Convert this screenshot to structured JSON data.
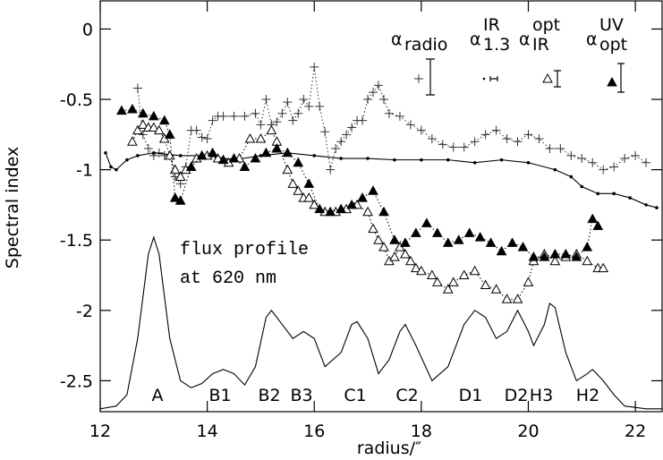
{
  "chart_data": {
    "type": "line",
    "xlabel": "radius/″",
    "ylabel": "Spectral index",
    "xlim": [
      12,
      22.5
    ],
    "ylim": [
      -2.72,
      0.2
    ],
    "xticks": [
      12,
      14,
      16,
      18,
      20,
      22
    ],
    "yticks": [
      0,
      -0.5,
      -1,
      -1.5,
      -2,
      -2.5
    ],
    "annotations": [
      "flux profile",
      "at 620 nm"
    ],
    "peak_labels": [
      "A",
      "B1",
      "B2",
      "B3",
      "C1",
      "C2",
      "D1",
      "D2",
      "H3",
      "H2"
    ],
    "series": [
      {
        "name": "α",
        "subscript": "radio",
        "marker": "plus",
        "line": "dotted",
        "color": "#333333",
        "x": [
          12.7,
          12.8,
          12.9,
          13.0,
          13.1,
          13.2,
          13.3,
          13.4,
          13.5,
          13.6,
          13.7,
          13.8,
          13.9,
          14.0,
          14.1,
          14.2,
          14.3,
          14.5,
          14.7,
          14.9,
          15.0,
          15.1,
          15.2,
          15.3,
          15.4,
          15.5,
          15.6,
          15.7,
          15.8,
          15.9,
          16.0,
          16.1,
          16.2,
          16.3,
          16.4,
          16.5,
          16.6,
          16.7,
          16.8,
          16.9,
          17.0,
          17.1,
          17.2,
          17.3,
          17.4,
          17.6,
          17.8,
          18.0,
          18.2,
          18.4,
          18.6,
          18.8,
          19.0,
          19.2,
          19.4,
          19.6,
          19.8,
          20.0,
          20.2,
          20.4,
          20.6,
          20.8,
          21.0,
          21.2,
          21.4,
          21.6,
          21.8,
          22.0,
          22.2
        ],
        "values": [
          -0.42,
          -0.75,
          -0.85,
          -0.9,
          -0.88,
          -0.9,
          -0.9,
          -1.05,
          -1.1,
          -0.98,
          -0.72,
          -0.72,
          -0.77,
          -0.78,
          -0.65,
          -0.62,
          -0.62,
          -0.62,
          -0.62,
          -0.6,
          -0.68,
          -0.5,
          -0.68,
          -0.66,
          -0.6,
          -0.52,
          -0.65,
          -0.6,
          -0.5,
          -0.55,
          -0.27,
          -0.55,
          -0.73,
          -1.0,
          -0.85,
          -0.8,
          -0.75,
          -0.7,
          -0.65,
          -0.65,
          -0.5,
          -0.45,
          -0.4,
          -0.5,
          -0.6,
          -0.62,
          -0.68,
          -0.72,
          -0.78,
          -0.82,
          -0.84,
          -0.84,
          -0.8,
          -0.75,
          -0.72,
          -0.78,
          -0.8,
          -0.75,
          -0.78,
          -0.85,
          -0.85,
          -0.9,
          -0.92,
          -0.95,
          -1.0,
          -0.98,
          -0.92,
          -0.9,
          -0.95
        ]
      },
      {
        "name": "α",
        "subscript": "1.3",
        "superscript": "IR",
        "marker": "dot",
        "line": "solid",
        "color": "#000000",
        "x": [
          12.1,
          12.2,
          12.3,
          12.5,
          12.7,
          13.0,
          13.5,
          14.0,
          14.5,
          15.0,
          15.5,
          16.0,
          16.5,
          17.0,
          17.5,
          18.0,
          18.5,
          19.0,
          19.5,
          20.0,
          20.5,
          20.8,
          21.0,
          21.3,
          21.6,
          21.9,
          22.2,
          22.4
        ],
        "values": [
          -0.88,
          -0.98,
          -1.0,
          -0.93,
          -0.9,
          -0.88,
          -0.9,
          -0.9,
          -0.93,
          -0.9,
          -0.88,
          -0.9,
          -0.92,
          -0.92,
          -0.93,
          -0.93,
          -0.93,
          -0.95,
          -0.93,
          -0.95,
          -1.0,
          -1.05,
          -1.12,
          -1.17,
          -1.17,
          -1.2,
          -1.25,
          -1.27
        ]
      },
      {
        "name": "α",
        "subscript": "IR",
        "superscript": "opt",
        "marker": "triangle-open",
        "line": "dotted",
        "color": "#000000",
        "x": [
          12.6,
          12.7,
          12.8,
          12.9,
          13.0,
          13.1,
          13.2,
          13.3,
          13.4,
          13.5,
          13.6,
          13.8,
          14.0,
          14.2,
          14.4,
          14.6,
          14.8,
          15.0,
          15.2,
          15.3,
          15.5,
          15.6,
          15.7,
          15.8,
          15.9,
          16.0,
          16.2,
          16.4,
          16.6,
          16.8,
          17.0,
          17.1,
          17.2,
          17.3,
          17.4,
          17.5,
          17.6,
          17.7,
          17.8,
          17.9,
          18.0,
          18.2,
          18.3,
          18.5,
          18.6,
          18.8,
          19.0,
          19.2,
          19.4,
          19.6,
          19.8,
          20.0,
          20.1,
          20.3,
          20.5,
          20.7,
          20.9,
          21.1,
          21.3,
          21.4
        ],
        "values": [
          -0.8,
          -0.72,
          -0.68,
          -0.7,
          -0.7,
          -0.72,
          -0.78,
          -0.9,
          -1.0,
          -1.05,
          -1.0,
          -0.92,
          -0.9,
          -0.92,
          -0.95,
          -0.92,
          -0.78,
          -0.78,
          -0.72,
          -0.8,
          -1.0,
          -1.1,
          -1.15,
          -1.2,
          -1.2,
          -1.25,
          -1.3,
          -1.3,
          -1.28,
          -1.25,
          -1.3,
          -1.42,
          -1.5,
          -1.55,
          -1.65,
          -1.62,
          -1.55,
          -1.6,
          -1.65,
          -1.7,
          -1.72,
          -1.75,
          -1.8,
          -1.85,
          -1.8,
          -1.75,
          -1.72,
          -1.82,
          -1.85,
          -1.92,
          -1.92,
          -1.8,
          -1.65,
          -1.6,
          -1.65,
          -1.62,
          -1.6,
          -1.65,
          -1.7,
          -1.7
        ]
      },
      {
        "name": "α",
        "subscript": "opt",
        "superscript": "UV",
        "marker": "triangle-filled",
        "line": "dotted",
        "color": "#000000",
        "x": [
          12.4,
          12.6,
          12.8,
          13.0,
          13.2,
          13.3,
          13.4,
          13.5,
          13.7,
          13.9,
          14.1,
          14.3,
          14.5,
          14.7,
          14.9,
          15.1,
          15.3,
          15.5,
          15.7,
          15.9,
          16.1,
          16.3,
          16.5,
          16.7,
          16.9,
          17.1,
          17.3,
          17.5,
          17.7,
          17.9,
          18.1,
          18.3,
          18.5,
          18.7,
          18.9,
          19.1,
          19.3,
          19.5,
          19.7,
          19.9,
          20.1,
          20.3,
          20.5,
          20.7,
          20.9,
          21.1,
          21.2,
          21.3
        ],
        "values": [
          -0.58,
          -0.57,
          -0.6,
          -0.62,
          -0.65,
          -0.75,
          -1.2,
          -1.22,
          -0.98,
          -0.9,
          -0.88,
          -0.93,
          -0.92,
          -0.98,
          -0.92,
          -0.88,
          -0.85,
          -0.88,
          -0.95,
          -1.1,
          -1.28,
          -1.3,
          -1.28,
          -1.25,
          -1.2,
          -1.15,
          -1.3,
          -1.5,
          -1.52,
          -1.45,
          -1.38,
          -1.45,
          -1.52,
          -1.5,
          -1.45,
          -1.48,
          -1.52,
          -1.58,
          -1.52,
          -1.55,
          -1.62,
          -1.62,
          -1.6,
          -1.6,
          -1.62,
          -1.55,
          -1.35,
          -1.4
        ]
      },
      {
        "marker": "none",
        "line": "solid",
        "color": "#000000",
        "x": [
          12.0,
          12.3,
          12.5,
          12.7,
          12.9,
          13.0,
          13.1,
          13.3,
          13.5,
          13.7,
          13.9,
          14.1,
          14.3,
          14.5,
          14.7,
          14.9,
          15.1,
          15.2,
          15.4,
          15.6,
          15.8,
          16.0,
          16.2,
          16.5,
          16.7,
          16.8,
          17.0,
          17.2,
          17.4,
          17.6,
          17.7,
          17.9,
          18.2,
          18.5,
          18.8,
          19.0,
          19.2,
          19.4,
          19.6,
          19.8,
          20.0,
          20.1,
          20.3,
          20.4,
          20.5,
          20.7,
          20.9,
          21.1,
          21.2,
          21.4,
          21.6,
          21.8,
          22.2,
          22.5
        ],
        "values": [
          -2.7,
          -2.68,
          -2.6,
          -2.2,
          -1.6,
          -1.48,
          -1.6,
          -2.2,
          -2.5,
          -2.55,
          -2.52,
          -2.45,
          -2.42,
          -2.45,
          -2.53,
          -2.4,
          -2.05,
          -2.0,
          -2.1,
          -2.2,
          -2.15,
          -2.2,
          -2.4,
          -2.3,
          -2.1,
          -2.08,
          -2.2,
          -2.45,
          -2.35,
          -2.15,
          -2.1,
          -2.25,
          -2.5,
          -2.4,
          -2.1,
          -2.0,
          -2.05,
          -2.2,
          -2.15,
          -2.0,
          -2.15,
          -2.25,
          -2.1,
          -1.95,
          -1.98,
          -2.3,
          -2.5,
          -2.45,
          -2.42,
          -2.5,
          -2.6,
          -2.68,
          -2.7,
          -2.7
        ]
      }
    ]
  }
}
